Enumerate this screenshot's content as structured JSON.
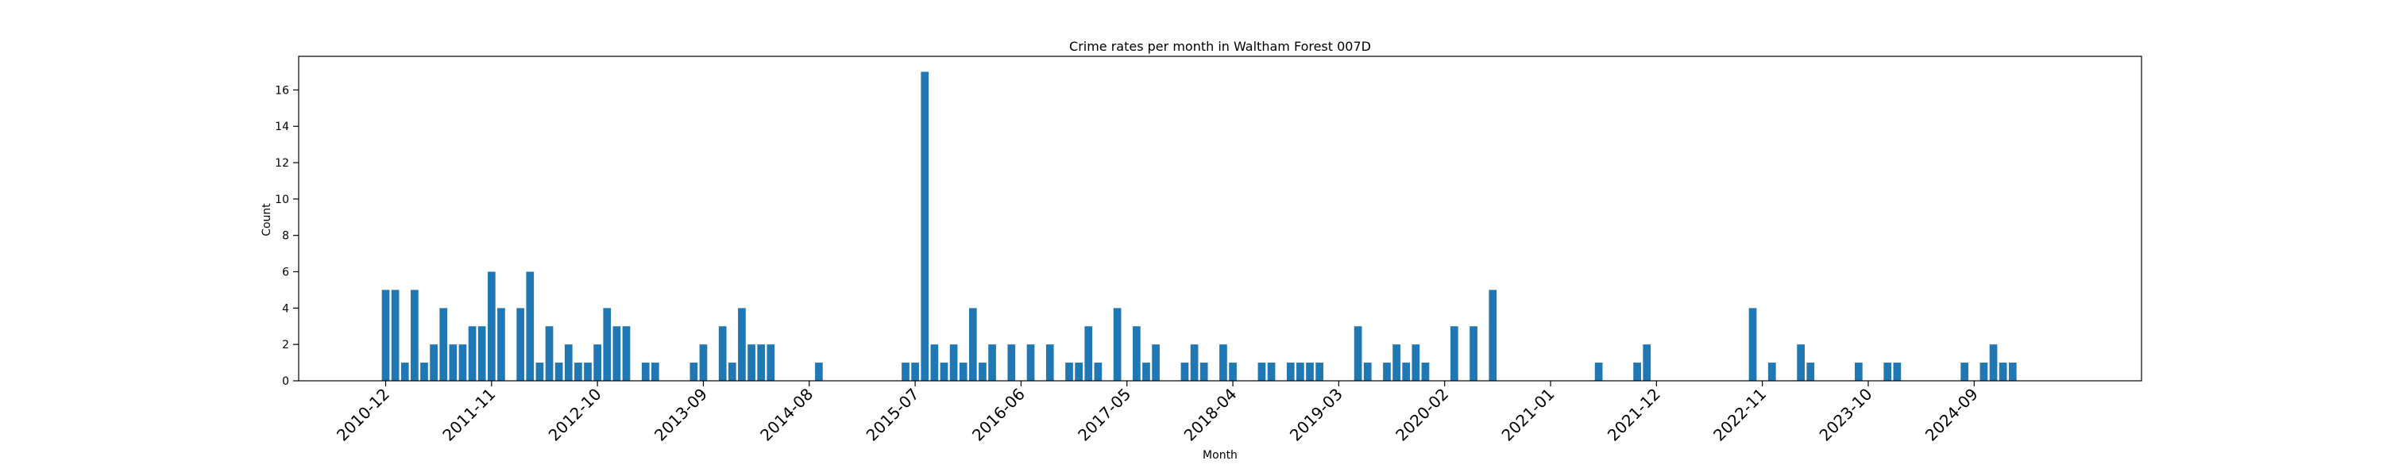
{
  "chart_data": {
    "type": "bar",
    "title": "Crime rates per month in Waltham Forest 007D",
    "xlabel": "Month",
    "ylabel": "Count",
    "ylim": [
      0,
      17.85
    ],
    "yticks": [
      0,
      2,
      4,
      6,
      8,
      10,
      12,
      14,
      16
    ],
    "xtick_labels": [
      "2010-12",
      "2011-11",
      "2012-10",
      "2013-09",
      "2014-08",
      "2015-07",
      "2016-06",
      "2017-05",
      "2018-04",
      "2019-03",
      "2020-02",
      "2021-01",
      "2021-12",
      "2022-11",
      "2023-10",
      "2024-09"
    ],
    "grid": false,
    "bar_color": "#1f77b4",
    "categories": [
      "2010-12",
      "2011-01",
      "2011-02",
      "2011-03",
      "2011-04",
      "2011-05",
      "2011-06",
      "2011-07",
      "2011-08",
      "2011-09",
      "2011-10",
      "2011-11",
      "2011-12",
      "2012-02",
      "2012-03",
      "2012-04",
      "2012-05",
      "2012-06",
      "2012-07",
      "2012-08",
      "2012-09",
      "2012-10",
      "2012-11",
      "2012-12",
      "2013-01",
      "2013-03",
      "2013-04",
      "2013-08",
      "2013-09",
      "2013-11",
      "2013-12",
      "2014-01",
      "2014-02",
      "2014-03",
      "2014-04",
      "2014-09",
      "2015-06",
      "2015-07",
      "2015-08",
      "2015-09",
      "2015-10",
      "2015-11",
      "2015-12",
      "2016-01",
      "2016-02",
      "2016-03",
      "2016-05",
      "2016-07",
      "2016-09",
      "2016-11",
      "2016-12",
      "2017-01",
      "2017-02",
      "2017-04",
      "2017-06",
      "2017-07",
      "2017-08",
      "2017-11",
      "2017-12",
      "2018-01",
      "2018-03",
      "2018-04",
      "2018-07",
      "2018-08",
      "2018-10",
      "2018-11",
      "2018-12",
      "2019-01",
      "2019-05",
      "2019-06",
      "2019-08",
      "2019-09",
      "2019-10",
      "2019-11",
      "2019-12",
      "2020-03",
      "2020-05",
      "2020-07",
      "2021-06",
      "2021-10",
      "2021-11",
      "2022-10",
      "2022-12",
      "2023-03",
      "2023-04",
      "2023-09",
      "2023-12",
      "2024-01",
      "2024-08",
      "2024-10",
      "2024-11",
      "2024-12",
      "2025-01"
    ],
    "values": [
      5,
      5,
      1,
      5,
      1,
      2,
      4,
      2,
      2,
      3,
      3,
      6,
      4,
      4,
      6,
      1,
      3,
      1,
      2,
      1,
      1,
      2,
      4,
      3,
      3,
      1,
      1,
      1,
      2,
      3,
      1,
      4,
      2,
      2,
      2,
      1,
      1,
      1,
      17,
      2,
      1,
      2,
      1,
      4,
      1,
      2,
      2,
      2,
      2,
      1,
      1,
      3,
      1,
      4,
      3,
      1,
      2,
      1,
      2,
      1,
      2,
      1,
      1,
      1,
      1,
      1,
      1,
      1,
      3,
      1,
      1,
      2,
      1,
      2,
      1,
      3,
      3,
      5,
      1,
      1,
      2,
      4,
      1,
      2,
      1,
      1,
      1,
      1,
      1,
      1,
      2,
      1,
      1
    ]
  }
}
